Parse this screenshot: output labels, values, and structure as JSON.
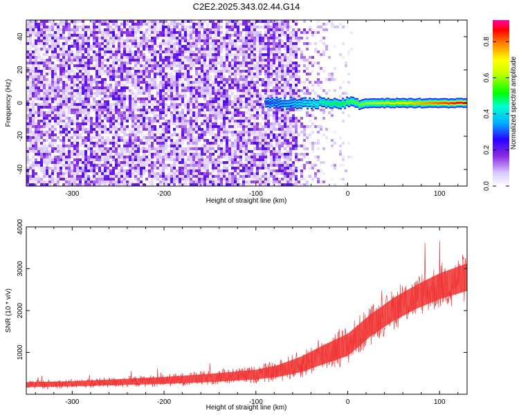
{
  "title": "C2E2.2025.343.02.44.G14",
  "chart_data": [
    {
      "type": "heatmap",
      "xlabel": "Height of straight line (km)",
      "ylabel": "Frequency (Hz)",
      "xlim": [
        -350,
        130
      ],
      "ylim": [
        -50,
        50
      ],
      "x_ticks": [
        -300,
        -200,
        -100,
        0,
        100
      ],
      "x_tick_labels": [
        "-300",
        "-200",
        "-100",
        "0",
        "100"
      ],
      "y_ticks": [
        -40,
        -20,
        0,
        20,
        40
      ],
      "y_tick_labels": [
        "-40",
        "-20",
        "0",
        "20",
        "40"
      ],
      "colorbar": {
        "label": "Normalized spectral amplitude",
        "range": [
          0,
          0.92
        ],
        "ticks": [
          0,
          0.2,
          0.4,
          0.6,
          0.8
        ],
        "tick_labels": [
          "0.0",
          "0.2",
          "0.4",
          "0.6",
          "0.8"
        ],
        "colormap": "rainbow (white-violet-blue-cyan-green-yellow-red-magenta)"
      },
      "features": [
        {
          "kind": "broadband noise",
          "x_range": [
            -350,
            -55
          ],
          "y_range": [
            -50,
            50
          ],
          "amplitude": 0.05
        },
        {
          "kind": "fading noise",
          "x_range": [
            -55,
            5
          ],
          "y_range": [
            -50,
            50
          ],
          "amplitude": 0.02
        },
        {
          "kind": "signal line",
          "x_range": [
            -90,
            130
          ],
          "frequency": 0,
          "amplitude_start": 0.3,
          "amplitude_end": 0.9
        }
      ],
      "grid": false
    },
    {
      "type": "line",
      "xlabel": "Height of straight line (km)",
      "ylabel": "SNR (10 * v/v)",
      "xlim": [
        -350,
        130
      ],
      "ylim": [
        0,
        4000
      ],
      "x_ticks": [
        -300,
        -200,
        -100,
        0,
        100
      ],
      "x_tick_labels": [
        "-300",
        "-200",
        "-100",
        "0",
        "100"
      ],
      "y_ticks": [
        1000,
        2000,
        3000,
        4000
      ],
      "y_tick_labels": [
        "1000",
        "2000",
        "3000",
        "4000"
      ],
      "color": "#f03333",
      "x": [
        -350,
        -300,
        -250,
        -200,
        -150,
        -100,
        -75,
        -50,
        -25,
        0,
        25,
        50,
        75,
        100,
        130
      ],
      "y": [
        230,
        250,
        290,
        330,
        390,
        470,
        560,
        720,
        960,
        1180,
        1650,
        2030,
        2330,
        2580,
        2800
      ],
      "noise_amplitude": [
        110,
        110,
        130,
        150,
        180,
        210,
        260,
        340,
        420,
        480,
        480,
        500,
        520,
        560,
        600
      ],
      "grid": false
    }
  ]
}
